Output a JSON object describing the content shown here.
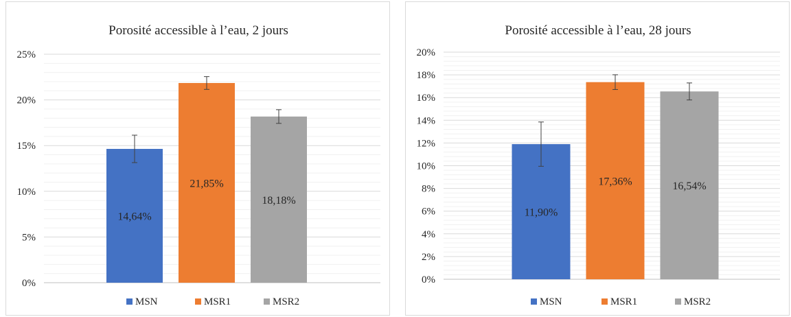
{
  "chart_data": [
    {
      "type": "bar",
      "title": "Porosité accessible à l’eau, 2 jours",
      "categories": [
        "MSN",
        "MSR1",
        "MSR2"
      ],
      "values": [
        14.64,
        21.85,
        18.18
      ],
      "value_labels": [
        "14,64%",
        "21,85%",
        "18,18%"
      ],
      "error": [
        1.5,
        0.7,
        0.75
      ],
      "colors": [
        "#4472C4",
        "#ED7D31",
        "#A5A5A5"
      ],
      "ylim": [
        0,
        25
      ],
      "major_step": 5,
      "minor_step": 1,
      "yticks": [
        "0%",
        "5%",
        "10%",
        "15%",
        "20%",
        "25%"
      ],
      "legend": [
        "MSN",
        "MSR1",
        "MSR2"
      ],
      "legend_position": "bottom",
      "grid": true
    },
    {
      "type": "bar",
      "title": "Porosité accessible à l’eau, 28 jours",
      "categories": [
        "MSN",
        "MSR1",
        "MSR2"
      ],
      "values": [
        11.9,
        17.36,
        16.54
      ],
      "value_labels": [
        "11,90%",
        "17,36%",
        "16,54%"
      ],
      "error": [
        1.95,
        0.65,
        0.75
      ],
      "colors": [
        "#4472C4",
        "#ED7D31",
        "#A5A5A5"
      ],
      "ylim": [
        0,
        20
      ],
      "major_step": 2,
      "minor_step": 0.4,
      "yticks": [
        "0%",
        "2%",
        "4%",
        "6%",
        "8%",
        "10%",
        "12%",
        "14%",
        "16%",
        "18%",
        "20%"
      ],
      "legend": [
        "MSN",
        "MSR1",
        "MSR2"
      ],
      "legend_position": "bottom",
      "grid": true
    }
  ]
}
